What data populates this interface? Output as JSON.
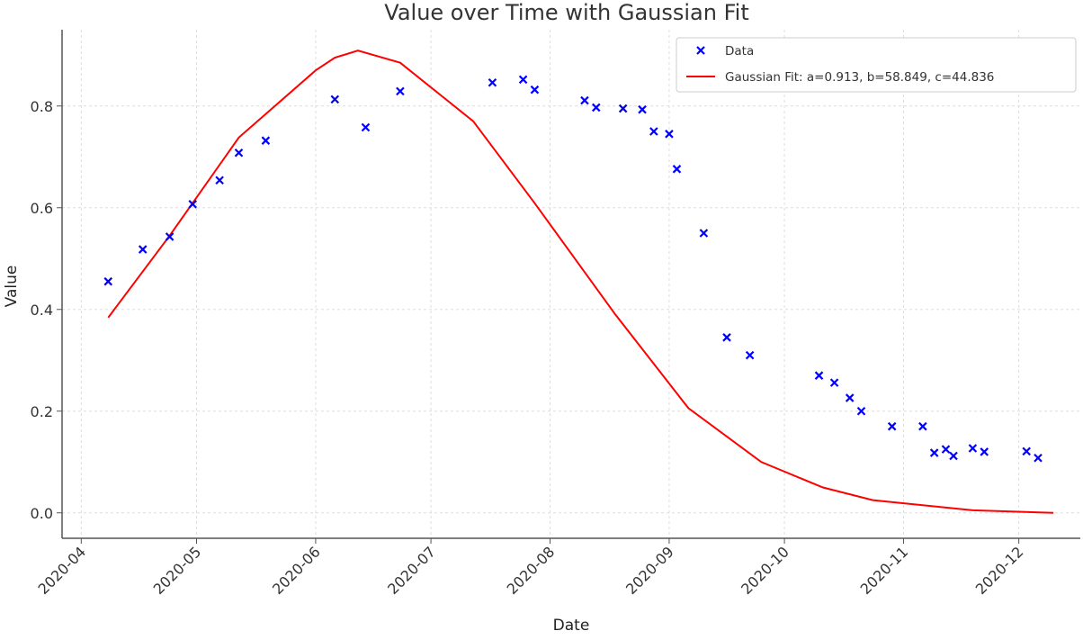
{
  "chart_data": {
    "type": "scatter",
    "title": "Value over Time with Gaussian Fit",
    "xlabel": "Date",
    "ylabel": "Value",
    "xlim": [
      "2020-03-27",
      "2020-12-17"
    ],
    "ylim": [
      -0.05,
      0.95
    ],
    "grid": true,
    "legend_position": "top-right",
    "x_tick_labels": [
      "2020-04",
      "2020-05",
      "2020-06",
      "2020-07",
      "2020-08",
      "2020-09",
      "2020-10",
      "2020-11",
      "2020-12"
    ],
    "y_tick_labels": [
      "0.0",
      "0.2",
      "0.4",
      "0.6",
      "0.8"
    ],
    "y_ticks": [
      0,
      0.2,
      0.4,
      0.6,
      0.8
    ],
    "series": [
      {
        "name": "Data",
        "kind": "scatter",
        "marker": "x",
        "color": "#0000ff",
        "x": [
          "2020-04-08",
          "2020-04-17",
          "2020-04-24",
          "2020-04-30",
          "2020-05-07",
          "2020-05-12",
          "2020-05-19",
          "2020-06-06",
          "2020-06-14",
          "2020-06-23",
          "2020-07-17",
          "2020-07-25",
          "2020-07-28",
          "2020-08-10",
          "2020-08-13",
          "2020-08-20",
          "2020-08-25",
          "2020-08-28",
          "2020-09-01",
          "2020-09-03",
          "2020-09-10",
          "2020-09-16",
          "2020-09-22",
          "2020-10-10",
          "2020-10-14",
          "2020-10-18",
          "2020-10-21",
          "2020-10-29",
          "2020-11-06",
          "2020-11-09",
          "2020-11-12",
          "2020-11-14",
          "2020-11-19",
          "2020-11-22",
          "2020-12-03",
          "2020-12-06"
        ],
        "y": [
          0.455,
          0.518,
          0.543,
          0.607,
          0.654,
          0.708,
          0.732,
          0.813,
          0.758,
          0.829,
          0.846,
          0.852,
          0.832,
          0.811,
          0.797,
          0.795,
          0.793,
          0.75,
          0.745,
          0.676,
          0.55,
          0.345,
          0.31,
          0.27,
          0.256,
          0.226,
          0.2,
          0.17,
          0.17,
          0.118,
          0.125,
          0.112,
          0.127,
          0.12,
          0.121,
          0.108
        ]
      },
      {
        "name": "Gaussian Fit: a=0.913, b=58.849, c=44.836",
        "kind": "line",
        "color": "#ff0000",
        "x": [
          "2020-04-08",
          "2020-04-24",
          "2020-05-12",
          "2020-06-01",
          "2020-06-06",
          "2020-06-12",
          "2020-06-23",
          "2020-07-12",
          "2020-07-28",
          "2020-08-18",
          "2020-09-06",
          "2020-09-25",
          "2020-10-11",
          "2020-10-24",
          "2020-11-19",
          "2020-12-10"
        ],
        "y": [
          0.384,
          0.545,
          0.738,
          0.87,
          0.895,
          0.909,
          0.885,
          0.77,
          0.609,
          0.39,
          0.206,
          0.1,
          0.05,
          0.025,
          0.005,
          0.0
        ]
      }
    ]
  }
}
